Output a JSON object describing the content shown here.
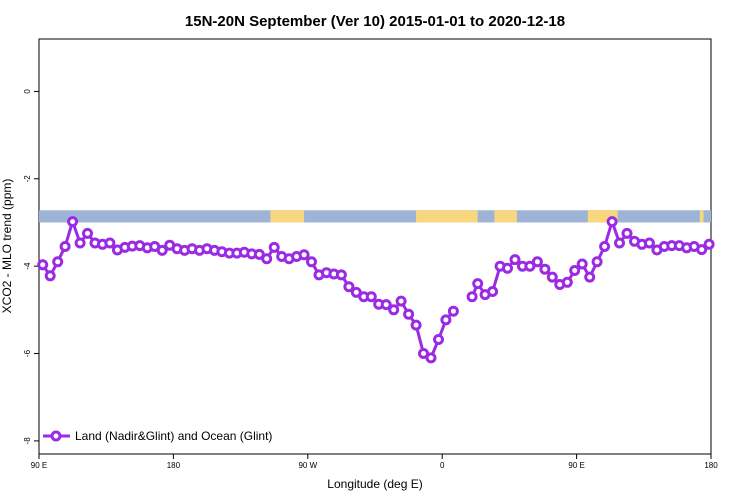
{
  "chart_data": {
    "type": "line",
    "title": "15N-20N September (Ver 10)   2015-01-01 to 2020-12-18",
    "xlabel": "Longitude (deg E)",
    "ylabel": "XCO2 - MLO trend (ppm)",
    "xlim": [
      90,
      450
    ],
    "ylim": [
      -8.3,
      1.2
    ],
    "x_ticks": [
      {
        "value": 90,
        "label": "90 E"
      },
      {
        "value": 162,
        "label": "180"
      },
      {
        "value": 234,
        "label": "90 W"
      },
      {
        "value": 306,
        "label": "0"
      },
      {
        "value": 378,
        "label": "90 E"
      },
      {
        "value": 450,
        "label": "180"
      }
    ],
    "y_ticks": [
      {
        "value": 0,
        "label": "0"
      },
      {
        "value": -2,
        "label": "-2"
      },
      {
        "value": -4,
        "label": "-4"
      },
      {
        "value": -6,
        "label": "-6"
      },
      {
        "value": -8,
        "label": "-8"
      }
    ],
    "land_ocean_band": {
      "y_top": -2.72,
      "y_bottom": -3.0,
      "ocean_color": "#9db4d6",
      "land_color": "#f9d77e",
      "land_segments": [
        [
          214,
          232
        ],
        [
          292,
          325
        ],
        [
          334,
          346
        ],
        [
          384,
          400
        ],
        [
          444,
          446
        ]
      ]
    },
    "legend": {
      "position": "bottom-left",
      "label": "Land (Nadir&Glint) and Ocean (Glint)"
    },
    "series": [
      {
        "name": "Land (Nadir&Glint) and Ocean (Glint)",
        "color": "#9a2be3",
        "segments": [
          {
            "x": [
              92,
              96,
              100,
              104,
              108,
              112,
              116,
              120,
              124,
              128,
              132,
              136,
              140,
              144,
              148,
              152,
              156,
              160,
              164,
              168,
              172,
              176,
              180,
              184,
              188,
              192,
              196,
              200,
              204,
              208,
              212,
              216,
              220,
              224,
              228,
              232,
              236,
              240,
              244,
              248,
              252,
              256,
              260,
              264,
              268,
              272,
              276,
              280,
              284,
              288,
              292,
              296,
              300,
              304,
              308,
              312,
              316
            ],
            "y": [
              -3.97,
              -4.22,
              -3.9,
              -3.55,
              -2.98,
              -3.47,
              -3.25,
              -3.47,
              -3.5,
              -3.47,
              -3.63,
              -3.57,
              -3.54,
              -3.53,
              -3.58,
              -3.55,
              -3.64,
              -3.52,
              -3.6,
              -3.64,
              -3.6,
              -3.64,
              -3.6,
              -3.64,
              -3.67,
              -3.7,
              -3.7,
              -3.68,
              -3.72,
              -3.73,
              -3.83,
              -3.57,
              -3.78,
              -3.83,
              -3.78,
              -3.74,
              -3.9,
              -4.2,
              -4.15,
              -4.18,
              -4.2,
              -4.47,
              -4.6,
              -4.7,
              -4.7,
              -4.87,
              -4.88,
              -5.0,
              -4.8,
              -5.1,
              -5.35,
              -6.0,
              -6.1,
              -5.68,
              -5.23,
              -5.03,
              null
            ]
          },
          {
            "x": [
              322,
              325,
              329,
              333,
              337,
              341,
              345,
              349,
              353,
              357,
              361,
              365,
              369,
              373,
              377,
              381,
              385,
              389,
              393,
              397,
              401,
              405,
              409,
              413,
              417,
              421,
              425,
              429,
              433,
              437,
              441,
              445,
              449
            ],
            "y": [
              -4.7,
              -4.4,
              -4.65,
              -4.58,
              -4.0,
              -4.05,
              -3.85,
              -4.0,
              -4.0,
              -3.9,
              -4.07,
              -4.25,
              -4.42,
              -4.37,
              -4.1,
              -3.95,
              -4.25,
              -3.9,
              -3.55,
              -2.98,
              -3.47,
              -3.25,
              -3.43,
              -3.5,
              -3.47,
              -3.63,
              -3.55,
              -3.53,
              -3.53,
              -3.58,
              -3.55,
              -3.62,
              -3.5
            ]
          }
        ]
      }
    ]
  }
}
